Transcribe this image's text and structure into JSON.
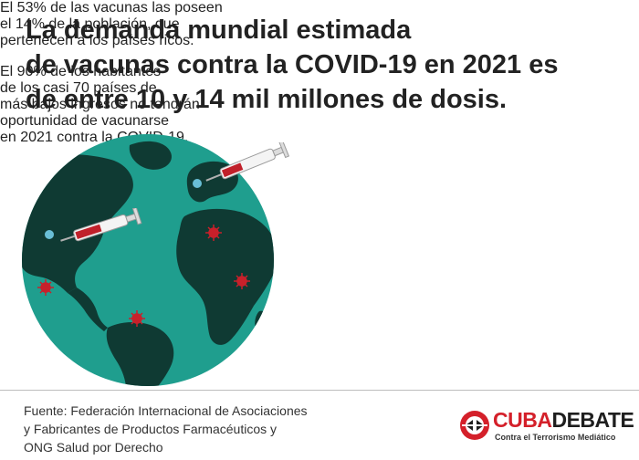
{
  "headline": {
    "line1": "La demanda mundial estimada",
    "line2": "de vacunas contra la COVID-19 en 2021 es",
    "line3": "de entre 10 y 14 mil millones de dosis."
  },
  "facts": [
    {
      "lines": [
        "El 53% de las vacunas las poseen",
        "el 14% de la población, que",
        "pertenecen a los países ricos."
      ]
    },
    {
      "lines": [
        "El 90% de los habitantes",
        "de los casi 70 países de",
        "más bajos ingresos no tendrán",
        "oportunidad de vacunarse",
        "en 2021 contra la COVID-19."
      ]
    }
  ],
  "source": {
    "lines": [
      "Fuente: Federación Internacional de Asociaciones",
      "y Fabricantes de Productos Farmacéuticos y",
      "ONG Salud por Derecho"
    ]
  },
  "brand": {
    "name_part1": "CUBA",
    "name_part2": "DEBATE",
    "tagline": "Contra el Terrorismo Mediático"
  },
  "colors": {
    "ocean": "#1f9e8e",
    "land": "#0f3a33",
    "virus": "#c8202b",
    "syringe_fluid": "#c0202a",
    "brand_red": "#d4202a",
    "text": "#222222"
  },
  "icons": [
    "globe-illustration",
    "syringe-icon",
    "virus-icon",
    "cubadebate-logo"
  ]
}
